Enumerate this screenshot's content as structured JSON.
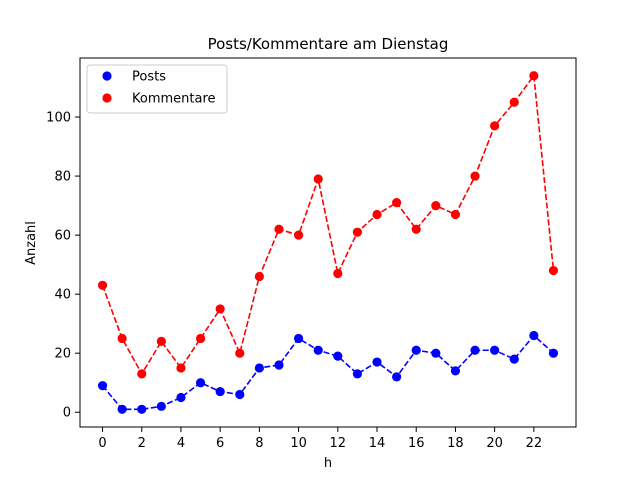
{
  "chart_data": {
    "type": "line",
    "title": "Posts/Kommentare am Dienstag",
    "xlabel": "h",
    "ylabel": "Anzahl",
    "x": [
      0,
      1,
      2,
      3,
      4,
      5,
      6,
      7,
      8,
      9,
      10,
      11,
      12,
      13,
      14,
      15,
      16,
      17,
      18,
      19,
      20,
      21,
      22,
      23
    ],
    "xticks": [
      0,
      2,
      4,
      6,
      8,
      10,
      12,
      14,
      16,
      18,
      20,
      22
    ],
    "yticks": [
      0,
      20,
      40,
      60,
      80,
      100
    ],
    "xlim": [
      -1.15,
      24.15
    ],
    "ylim": [
      -5.0,
      120.0
    ],
    "grid": false,
    "legend_position": "upper left",
    "series": [
      {
        "name": "Posts",
        "color": "#0000ff",
        "line_style": "dashed",
        "marker": "circle",
        "values": [
          9,
          1,
          1,
          2,
          5,
          10,
          7,
          6,
          15,
          16,
          25,
          21,
          19,
          13,
          17,
          12,
          21,
          20,
          14,
          21,
          21,
          18,
          26,
          20
        ]
      },
      {
        "name": "Kommentare",
        "color": "#ff0000",
        "line_style": "dashed",
        "marker": "circle",
        "values": [
          43,
          25,
          13,
          24,
          15,
          25,
          35,
          20,
          46,
          62,
          60,
          79,
          47,
          61,
          67,
          71,
          62,
          70,
          67,
          80,
          97,
          105,
          114,
          48
        ]
      }
    ]
  }
}
